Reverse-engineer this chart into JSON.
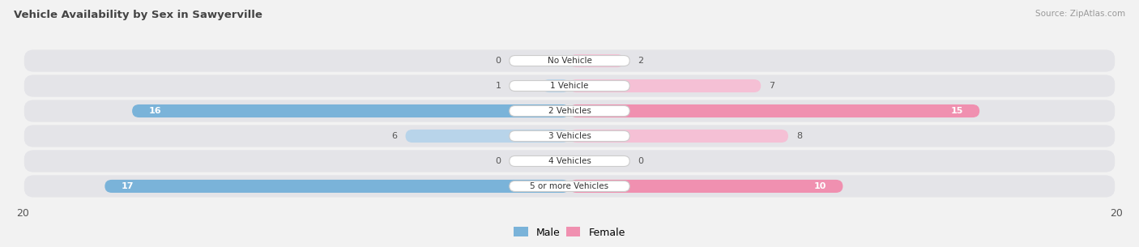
{
  "title": "Vehicle Availability by Sex in Sawyerville",
  "source": "Source: ZipAtlas.com",
  "categories": [
    "No Vehicle",
    "1 Vehicle",
    "2 Vehicles",
    "3 Vehicles",
    "4 Vehicles",
    "5 or more Vehicles"
  ],
  "male_values": [
    0,
    1,
    16,
    6,
    0,
    17
  ],
  "female_values": [
    2,
    7,
    15,
    8,
    0,
    10
  ],
  "male_color": "#7ab3d9",
  "female_color": "#f090b0",
  "male_color_light": "#b8d4ea",
  "female_color_light": "#f5c0d5",
  "xlim": 20,
  "bg_color": "#f2f2f2",
  "bar_bg_color": "#e4e4e8",
  "text_dark": "#555555",
  "text_white": "#ffffff"
}
